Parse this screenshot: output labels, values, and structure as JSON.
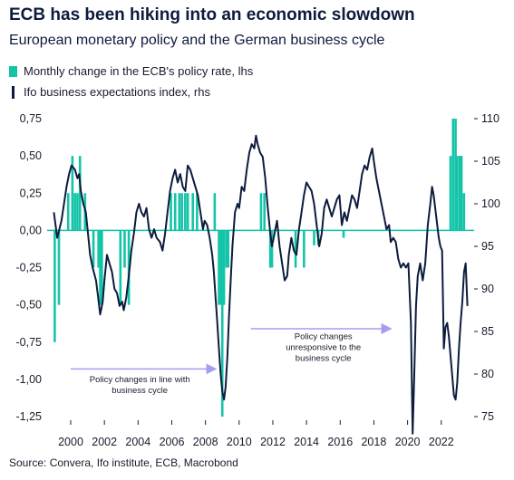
{
  "title": "ECB has been hiking into an economic slowdown",
  "subtitle": "European monetary policy and the German business cycle",
  "source": "Source: Convera, Ifo institute, ECB, Macrobond",
  "colors": {
    "bars": "#14c4a8",
    "line": "#0d1b3e",
    "arrow": "#a89cf0",
    "zero": "#14c4a8"
  },
  "chart_data": {
    "type": "bar+line",
    "x_tick_labels": [
      "2000",
      "2002",
      "2004",
      "2006",
      "2008",
      "2010",
      "2012",
      "2014",
      "2016",
      "2018",
      "2020",
      "2022"
    ],
    "left_axis": {
      "ticks": [
        "0,75",
        "0,50",
        "0,25",
        "0,00",
        "-0,25",
        "-0,50",
        "-0,75",
        "-1,00",
        "-1,25"
      ],
      "ylim": [
        -1.25,
        0.75
      ]
    },
    "right_axis": {
      "ticks": [
        "110",
        "105",
        "100",
        "95",
        "90",
        "85",
        "80",
        "75"
      ],
      "ylim": [
        75,
        110
      ]
    },
    "series": [
      {
        "name": "Monthly change in the ECB's policy rate, lhs",
        "type": "bar",
        "points": [
          [
            1999.05,
            -0.75
          ],
          [
            1999.3,
            -0.5
          ],
          [
            1999.85,
            0.25
          ],
          [
            2000.1,
            0.5
          ],
          [
            2000.25,
            0.25
          ],
          [
            2000.4,
            0.25
          ],
          [
            2000.55,
            0.5
          ],
          [
            2000.85,
            0.25
          ],
          [
            2001.35,
            -0.25
          ],
          [
            2001.65,
            -0.25
          ],
          [
            2001.75,
            -0.5
          ],
          [
            2001.85,
            -0.5
          ],
          [
            2002.95,
            -0.5
          ],
          [
            2003.2,
            -0.25
          ],
          [
            2003.45,
            -0.5
          ],
          [
            2005.95,
            0.25
          ],
          [
            2006.2,
            0.25
          ],
          [
            2006.45,
            0.25
          ],
          [
            2006.6,
            0.25
          ],
          [
            2006.8,
            0.25
          ],
          [
            2006.95,
            0.25
          ],
          [
            2007.25,
            0.25
          ],
          [
            2007.5,
            0.25
          ],
          [
            2008.55,
            0.25
          ],
          [
            2008.8,
            -0.5
          ],
          [
            2008.9,
            -0.5
          ],
          [
            2009.0,
            -1.25
          ],
          [
            2009.1,
            -0.5
          ],
          [
            2009.25,
            -0.25
          ],
          [
            2009.35,
            -0.25
          ],
          [
            2011.3,
            0.25
          ],
          [
            2011.5,
            0.25
          ],
          [
            2011.85,
            -0.25
          ],
          [
            2011.95,
            -0.25
          ],
          [
            2013.35,
            -0.25
          ],
          [
            2013.85,
            -0.25
          ],
          [
            2014.45,
            -0.1
          ],
          [
            2014.7,
            -0.1
          ],
          [
            2016.2,
            -0.05
          ],
          [
            2022.55,
            0.5
          ],
          [
            2022.7,
            0.75
          ],
          [
            2022.85,
            0.75
          ],
          [
            2022.95,
            0.5
          ],
          [
            2023.1,
            0.5
          ],
          [
            2023.2,
            0.5
          ],
          [
            2023.35,
            0.25
          ]
        ]
      },
      {
        "name": "Ifo business expectations index, rhs",
        "type": "line",
        "points": [
          [
            1999.0,
            99.0
          ],
          [
            1999.1,
            97.5
          ],
          [
            1999.2,
            96.0
          ],
          [
            1999.3,
            96.8
          ],
          [
            1999.45,
            98.0
          ],
          [
            1999.6,
            100.0
          ],
          [
            1999.75,
            102.0
          ],
          [
            1999.9,
            103.5
          ],
          [
            2000.05,
            104.5
          ],
          [
            2000.25,
            104.0
          ],
          [
            2000.4,
            103.0
          ],
          [
            2000.5,
            103.5
          ],
          [
            2000.6,
            101.5
          ],
          [
            2000.75,
            100.0
          ],
          [
            2000.9,
            99.0
          ],
          [
            2001.0,
            97.0
          ],
          [
            2001.15,
            94.0
          ],
          [
            2001.3,
            92.5
          ],
          [
            2001.5,
            91.0
          ],
          [
            2001.6,
            89.5
          ],
          [
            2001.75,
            87.0
          ],
          [
            2001.9,
            88.5
          ],
          [
            2002.0,
            91.0
          ],
          [
            2002.15,
            94.0
          ],
          [
            2002.3,
            93.0
          ],
          [
            2002.45,
            92.0
          ],
          [
            2002.6,
            90.0
          ],
          [
            2002.75,
            89.5
          ],
          [
            2002.9,
            88.0
          ],
          [
            2003.05,
            88.5
          ],
          [
            2003.15,
            87.5
          ],
          [
            2003.3,
            89.0
          ],
          [
            2003.45,
            91.5
          ],
          [
            2003.6,
            94.5
          ],
          [
            2003.75,
            96.5
          ],
          [
            2003.9,
            99.0
          ],
          [
            2004.05,
            100.0
          ],
          [
            2004.2,
            99.0
          ],
          [
            2004.35,
            98.5
          ],
          [
            2004.5,
            99.5
          ],
          [
            2004.65,
            97.0
          ],
          [
            2004.8,
            96.0
          ],
          [
            2004.95,
            97.0
          ],
          [
            2005.1,
            96.0
          ],
          [
            2005.3,
            95.5
          ],
          [
            2005.45,
            94.5
          ],
          [
            2005.6,
            96.5
          ],
          [
            2005.75,
            99.0
          ],
          [
            2005.9,
            101.5
          ],
          [
            2006.05,
            103.0
          ],
          [
            2006.2,
            104.0
          ],
          [
            2006.35,
            102.5
          ],
          [
            2006.5,
            103.5
          ],
          [
            2006.65,
            102.0
          ],
          [
            2006.8,
            101.5
          ],
          [
            2006.95,
            104.5
          ],
          [
            2007.1,
            104.0
          ],
          [
            2007.25,
            103.0
          ],
          [
            2007.4,
            102.0
          ],
          [
            2007.55,
            101.0
          ],
          [
            2007.7,
            99.0
          ],
          [
            2007.85,
            97.0
          ],
          [
            2007.95,
            98.0
          ],
          [
            2008.1,
            97.5
          ],
          [
            2008.25,
            96.0
          ],
          [
            2008.4,
            94.0
          ],
          [
            2008.5,
            92.0
          ],
          [
            2008.6,
            89.0
          ],
          [
            2008.7,
            86.0
          ],
          [
            2008.8,
            83.0
          ],
          [
            2008.9,
            80.0
          ],
          [
            2009.0,
            78.0
          ],
          [
            2009.1,
            77.0
          ],
          [
            2009.2,
            78.5
          ],
          [
            2009.3,
            82.0
          ],
          [
            2009.4,
            87.0
          ],
          [
            2009.5,
            91.0
          ],
          [
            2009.6,
            95.0
          ],
          [
            2009.75,
            99.0
          ],
          [
            2009.9,
            100.0
          ],
          [
            2010.0,
            99.5
          ],
          [
            2010.15,
            102.0
          ],
          [
            2010.3,
            101.5
          ],
          [
            2010.45,
            104.0
          ],
          [
            2010.6,
            106.0
          ],
          [
            2010.75,
            107.0
          ],
          [
            2010.9,
            106.5
          ],
          [
            2011.0,
            108.0
          ],
          [
            2011.1,
            107.0
          ],
          [
            2011.25,
            106.0
          ],
          [
            2011.4,
            105.5
          ],
          [
            2011.55,
            103.0
          ],
          [
            2011.7,
            99.5
          ],
          [
            2011.85,
            96.5
          ],
          [
            2011.95,
            95.0
          ],
          [
            2012.1,
            96.5
          ],
          [
            2012.25,
            98.0
          ],
          [
            2012.4,
            95.0
          ],
          [
            2012.55,
            93.0
          ],
          [
            2012.7,
            91.0
          ],
          [
            2012.85,
            91.5
          ],
          [
            2012.95,
            94.0
          ],
          [
            2013.1,
            96.0
          ],
          [
            2013.25,
            94.5
          ],
          [
            2013.4,
            94.0
          ],
          [
            2013.55,
            97.0
          ],
          [
            2013.7,
            99.0
          ],
          [
            2013.85,
            101.0
          ],
          [
            2014.0,
            102.5
          ],
          [
            2014.15,
            102.0
          ],
          [
            2014.3,
            101.5
          ],
          [
            2014.45,
            100.0
          ],
          [
            2014.6,
            97.5
          ],
          [
            2014.75,
            95.0
          ],
          [
            2014.9,
            96.5
          ],
          [
            2015.05,
            99.5
          ],
          [
            2015.2,
            100.5
          ],
          [
            2015.35,
            99.5
          ],
          [
            2015.5,
            98.5
          ],
          [
            2015.65,
            99.5
          ],
          [
            2015.8,
            100.5
          ],
          [
            2015.95,
            101.0
          ],
          [
            2016.1,
            97.5
          ],
          [
            2016.25,
            99.0
          ],
          [
            2016.4,
            98.0
          ],
          [
            2016.55,
            99.5
          ],
          [
            2016.7,
            101.0
          ],
          [
            2016.85,
            100.5
          ],
          [
            2017.0,
            99.5
          ],
          [
            2017.15,
            101.5
          ],
          [
            2017.3,
            103.5
          ],
          [
            2017.45,
            104.5
          ],
          [
            2017.6,
            104.0
          ],
          [
            2017.75,
            105.5
          ],
          [
            2017.9,
            106.5
          ],
          [
            2018.0,
            105.0
          ],
          [
            2018.15,
            103.0
          ],
          [
            2018.3,
            101.5
          ],
          [
            2018.45,
            100.0
          ],
          [
            2018.6,
            98.5
          ],
          [
            2018.75,
            97.0
          ],
          [
            2018.9,
            97.5
          ],
          [
            2019.0,
            95.5
          ],
          [
            2019.15,
            96.0
          ],
          [
            2019.3,
            95.5
          ],
          [
            2019.45,
            93.5
          ],
          [
            2019.6,
            92.5
          ],
          [
            2019.75,
            93.0
          ],
          [
            2019.9,
            92.5
          ],
          [
            2020.05,
            93.0
          ],
          [
            2020.2,
            86.0
          ],
          [
            2020.3,
            73.0
          ],
          [
            2020.4,
            80.0
          ],
          [
            2020.5,
            88.0
          ],
          [
            2020.6,
            91.5
          ],
          [
            2020.75,
            93.0
          ],
          [
            2020.9,
            91.0
          ],
          [
            2021.05,
            93.0
          ],
          [
            2021.2,
            97.5
          ],
          [
            2021.35,
            100.0
          ],
          [
            2021.45,
            102.0
          ],
          [
            2021.55,
            101.0
          ],
          [
            2021.7,
            98.5
          ],
          [
            2021.85,
            96.0
          ],
          [
            2021.95,
            95.0
          ],
          [
            2022.05,
            94.5
          ],
          [
            2022.15,
            83.0
          ],
          [
            2022.25,
            85.5
          ],
          [
            2022.35,
            86.0
          ],
          [
            2022.45,
            84.5
          ],
          [
            2022.6,
            81.0
          ],
          [
            2022.75,
            77.5
          ],
          [
            2022.85,
            77.0
          ],
          [
            2022.95,
            79.0
          ],
          [
            2023.05,
            83.0
          ],
          [
            2023.15,
            86.0
          ],
          [
            2023.25,
            88.5
          ],
          [
            2023.35,
            92.0
          ],
          [
            2023.45,
            93.0
          ],
          [
            2023.55,
            88.0
          ]
        ]
      }
    ],
    "annotations": [
      {
        "text": [
          "Policy changes in line with",
          "business cycle"
        ],
        "arrow_from": [
          2000.0,
          -0.93
        ],
        "arrow_to": [
          2008.6,
          -0.93
        ],
        "text_at": [
          2004.1,
          -1.02
        ]
      },
      {
        "text": [
          "Policy changes",
          "unresponsive to the",
          "business cycle"
        ],
        "arrow_from": [
          2010.7,
          -0.66
        ],
        "arrow_to": [
          2019.0,
          -0.66
        ],
        "text_at": [
          2015.0,
          -0.73
        ]
      }
    ]
  }
}
